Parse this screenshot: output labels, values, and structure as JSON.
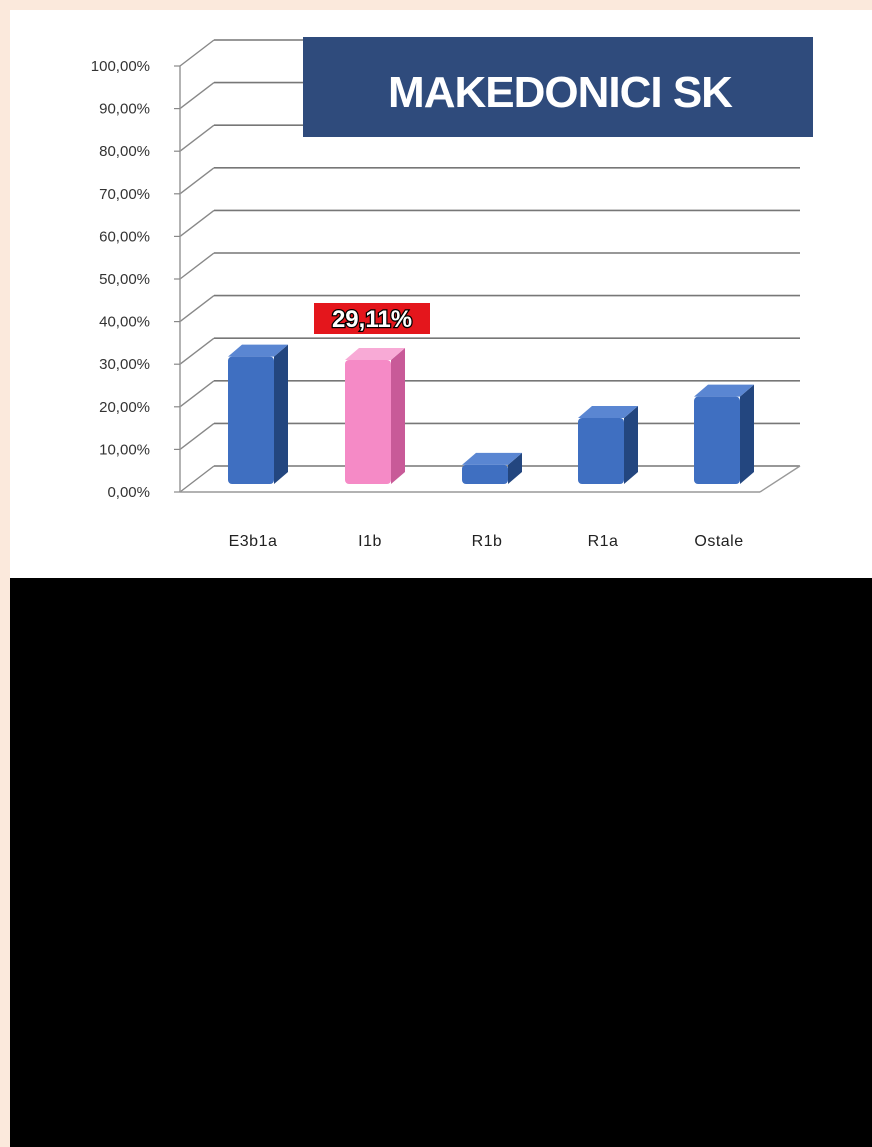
{
  "chart_data": {
    "type": "bar",
    "title": "MAKEDONICI SK",
    "categories": [
      "E3b1a",
      "I1b",
      "R1b",
      "R1a",
      "Ostale"
    ],
    "values": [
      29.9,
      29.11,
      4.5,
      15.5,
      20.5
    ],
    "highlight_index": 1,
    "data_label": "29,11%",
    "ylim": [
      0,
      100
    ],
    "yticks": [
      "0,00%",
      "10,00%",
      "20,00%",
      "30,00%",
      "40,00%",
      "50,00%",
      "60,00%",
      "70,00%",
      "80,00%",
      "90,00%",
      "100,00%"
    ],
    "grid": true,
    "colors": {
      "bar": "#3f6fc1",
      "bar_dark": "#23467f",
      "bar_top": "#5a86d2",
      "highlight": "#f58ac6",
      "highlight_dark": "#c85a98",
      "highlight_top": "#f8aad6",
      "title_bg": "#2f4b7c",
      "label_bg": "#e4161c"
    }
  }
}
